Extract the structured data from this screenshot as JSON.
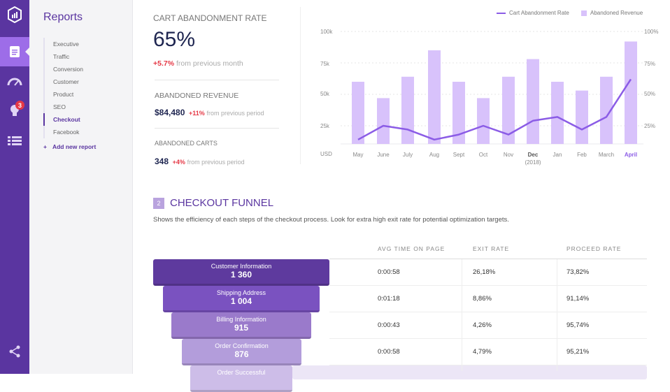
{
  "rail": {
    "items": [
      {
        "icon": "logo-icon"
      },
      {
        "icon": "reports-icon",
        "active": true
      },
      {
        "icon": "speedometer-icon"
      },
      {
        "icon": "lightbulb-icon",
        "badge": "3"
      },
      {
        "icon": "list-icon"
      },
      {
        "icon": "share-icon"
      }
    ]
  },
  "panel": {
    "title": "Reports",
    "items": [
      "Executive",
      "Traffic",
      "Conversion",
      "Customer",
      "Product",
      "SEO",
      "Checkout",
      "Facebook"
    ],
    "selected": "Checkout",
    "add_label": "Add new report"
  },
  "kpis": {
    "rate": {
      "label": "CART ABANDONMENT RATE",
      "value": "65%",
      "delta": "+5.7%",
      "note": "from previous month"
    },
    "revenue": {
      "label": "ABANDONED REVENUE",
      "value": "$84,480",
      "delta": "+11%",
      "note": "from previous period"
    },
    "carts": {
      "label": "ABANDONED CARTS",
      "value": "348",
      "delta": "+4%",
      "note": "from previous period"
    }
  },
  "chart_data": {
    "type": "bar",
    "categories": [
      "May",
      "June",
      "July",
      "Aug",
      "Sept",
      "Oct",
      "Nov",
      "Dec",
      "Jan",
      "Feb",
      "March",
      "April"
    ],
    "category_sublabel": {
      "Dec": "(2018)"
    },
    "series": [
      {
        "name": "Abandoned Revenue",
        "type": "bar",
        "axis": "left",
        "values": [
          60,
          47,
          64,
          85,
          60,
          47,
          64,
          78,
          60,
          53,
          64,
          92
        ],
        "color": "#d8c2fb"
      },
      {
        "name": "Cart Abandonment Rate",
        "type": "line",
        "axis": "right",
        "values": [
          14,
          25,
          22,
          14,
          18,
          25,
          18,
          29,
          32,
          22,
          32,
          62
        ],
        "color": "#8b5ce6"
      }
    ],
    "y_left": {
      "label": "USD",
      "ticks": [
        "25k",
        "50k",
        "75k",
        "100k"
      ]
    },
    "y_right": {
      "ticks": [
        "25%",
        "50%",
        "75%",
        "100%"
      ]
    },
    "grid": true,
    "legend": "top-right",
    "highlight": "April"
  },
  "funnel": {
    "section_number": "2",
    "title": "CHECKOUT FUNNEL",
    "description": "Shows the efficiency of each steps of the checkout process. Look for extra high exit rate for potential optimization targets.",
    "headers": [
      "AVG TIME ON PAGE",
      "EXIT RATE",
      "PROCEED RATE"
    ],
    "steps": [
      {
        "name": "Customer Information",
        "count": "1 360",
        "avg_time": "0:00:58",
        "exit": "26,18%",
        "proceed": "73,82%",
        "color": "#5e3a9e"
      },
      {
        "name": "Shipping Address",
        "count": "1 004",
        "avg_time": "0:01:18",
        "exit": "8,86%",
        "proceed": "91,14%",
        "color": "#7a52c0"
      },
      {
        "name": "Billing Information",
        "count": "915",
        "avg_time": "0:00:43",
        "exit": "4,26%",
        "proceed": "95,74%",
        "color": "#9a7acb"
      },
      {
        "name": "Order Confirmation",
        "count": "876",
        "avg_time": "0:00:58",
        "exit": "4,79%",
        "proceed": "95,21%",
        "color": "#b39ddb"
      },
      {
        "name": "Order Successful",
        "color": "#cdbde8"
      }
    ]
  }
}
